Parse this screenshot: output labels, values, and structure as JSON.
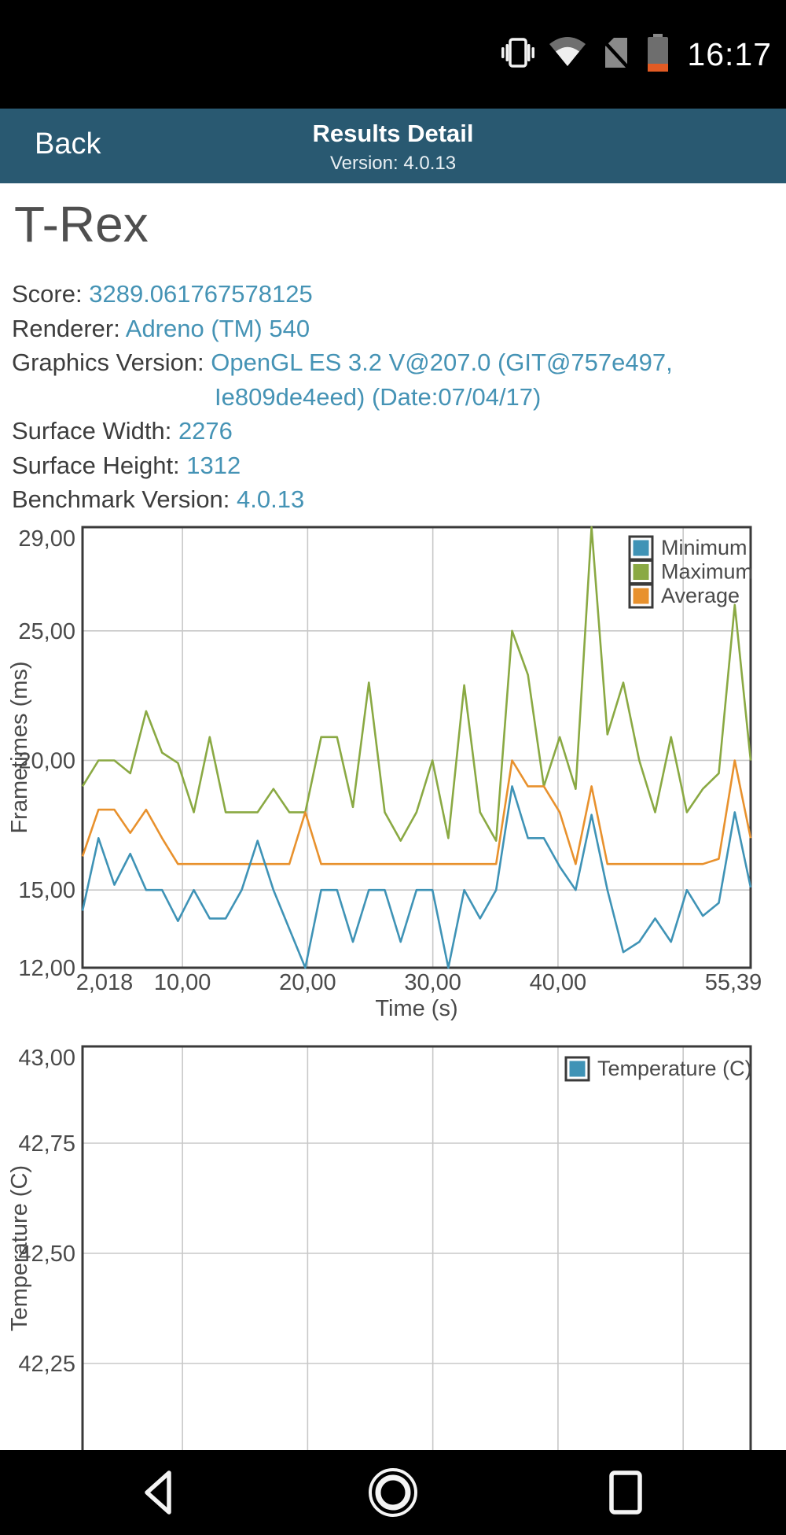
{
  "status_bar": {
    "time": "16:17",
    "icons": [
      "vibrate-icon",
      "wifi-icon",
      "no-sim-icon",
      "battery-low-icon"
    ]
  },
  "header": {
    "back_label": "Back",
    "title": "Results Detail",
    "version": "Version: 4.0.13",
    "background": "#295971"
  },
  "result": {
    "title": "T-Rex",
    "score": {
      "label": "Score:",
      "value": "3289.061767578125"
    },
    "renderer": {
      "label": "Renderer:",
      "value": "Adreno (TM) 540"
    },
    "graphics_version": {
      "label": "Graphics Version:",
      "value_line1": "OpenGL ES 3.2 V@207.0 (GIT@757e497,",
      "value_line2": "Ie809de4eed) (Date:07/04/17)"
    },
    "surface_width": {
      "label": "Surface Width:",
      "value": "2276"
    },
    "surface_height": {
      "label": "Surface Height:",
      "value": "1312"
    },
    "benchmark_version": {
      "label": "Benchmark Version:",
      "value": "4.0.13"
    }
  },
  "colors": {
    "accent_teal_text": "#4593b5",
    "series_minimum": "#3f93b6",
    "series_maximum": "#8aa943",
    "series_average": "#e8912d",
    "header_bg": "#295971",
    "status_bg": "#000000",
    "battery_warning": "#e25b24",
    "gridline": "#c8c8c8",
    "axis_border": "#3a3a3a"
  },
  "chart_data": [
    {
      "type": "line",
      "title": "",
      "xlabel": "Time (s)",
      "ylabel": "Frametimes (ms)",
      "xlim": [
        2.018,
        55.39
      ],
      "ylim": [
        12,
        29
      ],
      "legend_position": "top-right",
      "grid": true,
      "xticks": [
        {
          "v": 2.018,
          "label": "2,018"
        },
        {
          "v": 10,
          "label": "10,00"
        },
        {
          "v": 20,
          "label": "20,00"
        },
        {
          "v": 30,
          "label": "30,00"
        },
        {
          "v": 40,
          "label": "40,00"
        },
        {
          "v": 55.39,
          "label": "55,39"
        }
      ],
      "xgrid": [
        10,
        20,
        30,
        40,
        50
      ],
      "yticks": [
        {
          "v": 29,
          "label": "29,00",
          "grid": false
        },
        {
          "v": 25,
          "label": "25,00",
          "grid": true
        },
        {
          "v": 20,
          "label": "20,00",
          "grid": true
        },
        {
          "v": 15,
          "label": "15,00",
          "grid": true
        },
        {
          "v": 12,
          "label": "12,00",
          "grid": false
        }
      ],
      "x": [
        2.02,
        3.29,
        4.56,
        5.83,
        7.1,
        8.37,
        9.64,
        10.91,
        12.18,
        13.45,
        14.73,
        16.0,
        17.27,
        18.54,
        19.81,
        21.08,
        22.35,
        23.62,
        24.89,
        26.16,
        27.43,
        28.7,
        29.97,
        31.24,
        32.51,
        33.78,
        35.06,
        36.33,
        37.6,
        38.87,
        40.14,
        41.41,
        42.68,
        43.95,
        45.22,
        46.49,
        47.76,
        49.03,
        50.3,
        51.57,
        52.85,
        54.12,
        55.39
      ],
      "series": [
        {
          "name": "Minimum",
          "color": "#3f93b6",
          "values": [
            14.2,
            17.0,
            15.2,
            16.4,
            15.0,
            15.0,
            13.8,
            15.0,
            13.9,
            13.9,
            15.0,
            16.9,
            15.0,
            13.5,
            12.0,
            15.0,
            15.0,
            13.0,
            15.0,
            15.0,
            13.0,
            15.0,
            15.0,
            12.0,
            15.0,
            13.9,
            15.0,
            19.0,
            17.0,
            17.0,
            15.9,
            15.0,
            17.9,
            15.0,
            12.6,
            13.0,
            13.9,
            13.0,
            15.0,
            14.0,
            14.5,
            18.0,
            15.1
          ]
        },
        {
          "name": "Maximum",
          "color": "#8aa943",
          "values": [
            19.0,
            20.0,
            20.0,
            19.5,
            21.9,
            20.3,
            19.9,
            18.0,
            20.9,
            18.0,
            18.0,
            18.0,
            18.9,
            18.0,
            18.0,
            20.9,
            20.9,
            18.2,
            23.0,
            18.0,
            16.9,
            18.0,
            20.0,
            17.0,
            22.9,
            18.0,
            16.9,
            25.0,
            23.3,
            19.0,
            20.9,
            18.9,
            29.0,
            21.0,
            23.0,
            20.0,
            18.0,
            20.9,
            18.0,
            18.9,
            19.5,
            26.0,
            20.0
          ]
        },
        {
          "name": "Average",
          "color": "#e8912d",
          "values": [
            16.3,
            18.1,
            18.1,
            17.2,
            18.1,
            17.0,
            16.0,
            16.0,
            16.0,
            16.0,
            16.0,
            16.0,
            16.0,
            16.0,
            18.0,
            16.0,
            16.0,
            16.0,
            16.0,
            16.0,
            16.0,
            16.0,
            16.0,
            16.0,
            16.0,
            16.0,
            16.0,
            20.0,
            19.0,
            19.0,
            18.0,
            16.0,
            19.0,
            16.0,
            16.0,
            16.0,
            16.0,
            16.0,
            16.0,
            16.0,
            16.2,
            20.0,
            17.0
          ]
        }
      ]
    },
    {
      "type": "line",
      "title": "",
      "xlabel": "",
      "ylabel": "Temperature (C)",
      "xlim": [
        2.018,
        55.39
      ],
      "ylim": [
        42.2,
        43.0
      ],
      "legend_position": "top-right",
      "grid": true,
      "note_visible_state": "plot cut off by navigation bar; no data line visible in frame",
      "xticks": [],
      "xgrid": [
        10,
        20,
        30,
        40,
        50
      ],
      "yticks": [
        {
          "v": 43.0,
          "label": "43,00",
          "grid": false
        },
        {
          "v": 42.75,
          "label": "42,75",
          "grid": true
        },
        {
          "v": 42.5,
          "label": "42,50",
          "grid": true
        },
        {
          "v": 42.25,
          "label": "42,25",
          "grid": true
        }
      ],
      "x": [],
      "series": [
        {
          "name": "Temperature (C)",
          "color": "#3f93b6",
          "values": []
        }
      ]
    }
  ],
  "nav_bar": {
    "icons": [
      "back-icon",
      "home-icon",
      "recents-icon"
    ]
  }
}
